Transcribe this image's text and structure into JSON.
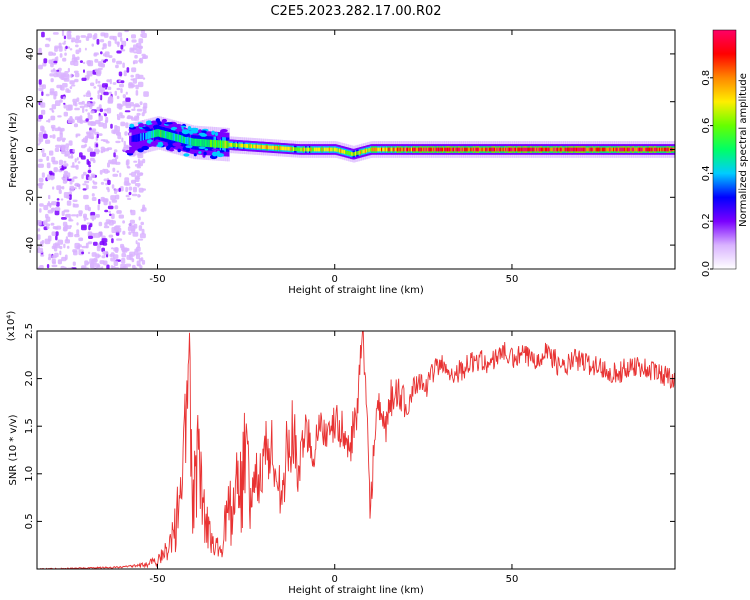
{
  "figure": {
    "title": "C2E5.2023.282.17.00.R02"
  },
  "chart_data": [
    {
      "type": "heatmap",
      "xlabel": "Height of straight line (km)",
      "ylabel": "Frequency (Hz)",
      "xlim": [
        -84,
        96
      ],
      "ylim": [
        -50,
        50
      ],
      "x_ticks": [
        -50,
        0,
        50
      ],
      "y_ticks": [
        -40,
        -20,
        0,
        20,
        40
      ],
      "colorbar": {
        "label": "Normalized spectral amplitude",
        "range": [
          0,
          1
        ],
        "ticks": [
          0.0,
          0.2,
          0.4,
          0.6,
          0.8
        ],
        "colors": [
          "#ffffff",
          "#d9b3ff",
          "#7a00ff",
          "#0000ff",
          "#00ccff",
          "#00ff66",
          "#66ff00",
          "#ffee00",
          "#ff8800",
          "#ff0000",
          "#ff0066"
        ]
      },
      "ridge": {
        "x": [
          -58,
          -50,
          -40,
          -30,
          -20,
          -10,
          0,
          5,
          10,
          20,
          30,
          50,
          70,
          96
        ],
        "freq": [
          4,
          7,
          3,
          2,
          1,
          0,
          0,
          -2,
          0,
          0,
          0,
          0,
          0,
          0
        ],
        "amplitude": [
          0.25,
          0.5,
          0.45,
          0.6,
          0.75,
          0.65,
          0.7,
          0.6,
          0.75,
          0.85,
          0.9,
          0.92,
          0.92,
          0.9
        ]
      },
      "noise_region_x": [
        -84,
        -58
      ]
    },
    {
      "type": "line",
      "xlabel": "Height of straight line (km)",
      "ylabel": "SNR (10 * v/v)",
      "y_multiplier": "(x10⁴)",
      "xlim": [
        -84,
        96
      ],
      "ylim": [
        0,
        2.5
      ],
      "x_ticks": [
        -50,
        0,
        50
      ],
      "y_ticks": [
        0.5,
        1.0,
        1.5,
        2.0,
        2.5
      ],
      "color": "#e83232",
      "series": [
        {
          "x": [
            -84,
            -70,
            -60,
            -55,
            -50,
            -47,
            -45,
            -43,
            -41,
            -40,
            -38,
            -36,
            -34,
            -32,
            -30,
            -28,
            -26,
            -25,
            -24,
            -22,
            -20,
            -18,
            -16,
            -14,
            -12,
            -10,
            -8,
            -6,
            -4,
            -2,
            0,
            2,
            4,
            6,
            8,
            10,
            12,
            14,
            16,
            18,
            20,
            22,
            24,
            26,
            28,
            30,
            33,
            36,
            40,
            44,
            47,
            50,
            53,
            56,
            60,
            64,
            68,
            72,
            76,
            80,
            84,
            88,
            92,
            96
          ],
          "values": [
            0.0,
            0.01,
            0.02,
            0.04,
            0.1,
            0.25,
            0.5,
            1.2,
            2.2,
            0.9,
            1.5,
            0.5,
            0.25,
            0.3,
            0.7,
            0.9,
            1.0,
            1.8,
            0.6,
            1.0,
            1.15,
            1.3,
            0.8,
            1.1,
            1.4,
            1.05,
            1.5,
            1.2,
            1.6,
            1.3,
            1.55,
            1.45,
            1.25,
            1.6,
            2.45,
            0.7,
            1.7,
            1.4,
            1.8,
            1.85,
            1.65,
            1.9,
            2.0,
            1.9,
            2.1,
            2.15,
            2.05,
            2.1,
            2.2,
            2.15,
            2.3,
            2.2,
            2.25,
            2.2,
            2.3,
            2.1,
            2.2,
            2.15,
            2.1,
            2.05,
            2.15,
            2.1,
            2.05,
            2.0
          ]
        }
      ]
    }
  ]
}
